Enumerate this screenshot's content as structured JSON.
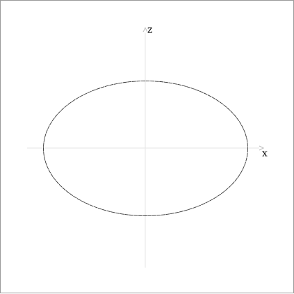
{
  "diagram": {
    "axes": {
      "x_label": "x",
      "z_label": "z",
      "axis_color": "#e6e6e6",
      "arrow_color": "#bdbdbd"
    },
    "curve": {
      "shape": "ellipse",
      "stroke_color": "#333333"
    }
  }
}
